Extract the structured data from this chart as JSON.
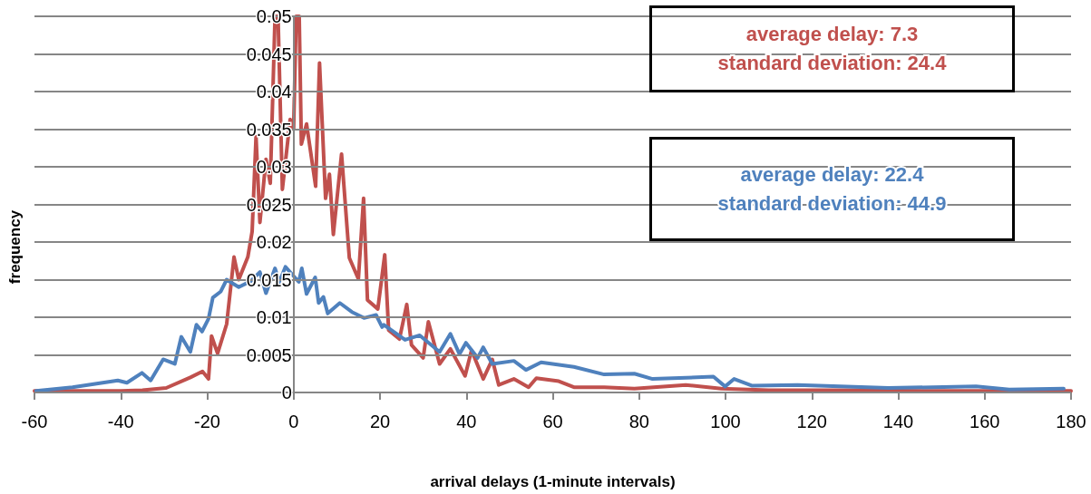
{
  "chart_data": {
    "type": "line",
    "xlabel": "arrival delays (1-minute intervals)",
    "ylabel": "frequency",
    "annotations": [
      "average delay: 7.3\nstandard deviation: 24.4",
      "average delay: 22.4\nstandard deviation: 44.9"
    ],
    "xlim": [
      -60,
      180
    ],
    "xticks": [
      -60,
      -40,
      -20,
      0,
      20,
      40,
      60,
      80,
      100,
      120,
      140,
      160,
      180
    ],
    "ylim": [
      0,
      0.05
    ],
    "yticks": [
      0,
      0.005,
      0.01,
      0.015,
      0.02,
      0.025,
      0.03,
      0.035,
      0.04,
      0.045,
      0.05
    ],
    "grid": "y",
    "marker": "none",
    "line_style": "solid",
    "series": [
      {
        "color": "#c0504d",
        "x": [
          -60,
          -50,
          -40,
          -35,
          -29.5,
          -23.9,
          -21.1,
          -19.7,
          -19,
          -17.6,
          -15.5,
          -13.8,
          -12.7,
          -10.6,
          -9.6,
          -8.7,
          -7.8,
          -6.4,
          -5.4,
          -4.3,
          -3.6,
          -2.6,
          -0.8,
          0,
          0.6,
          1.3,
          1.8,
          3,
          5.1,
          6,
          7.4,
          8.3,
          9.2,
          11.1,
          12.9,
          15,
          16.2,
          17.1,
          19.5,
          21.1,
          22,
          24.5,
          26.2,
          27.3,
          30,
          31.2,
          33.8,
          36.3,
          39.7,
          41.2,
          43.9,
          46,
          47.5,
          51,
          54.4,
          56.2,
          61.4,
          64.9,
          71.9,
          78.9,
          90.8,
          99,
          110,
          130,
          150,
          170,
          180
        ],
        "values": [
          0.0002,
          0.0002,
          0.0002,
          0.0003,
          0.0006,
          0.002,
          0.0028,
          0.0018,
          0.0075,
          0.0052,
          0.0091,
          0.018,
          0.015,
          0.018,
          0.0214,
          0.034,
          0.0226,
          0.031,
          0.0278,
          0.05,
          0.05,
          0.027,
          0.0363,
          0.035,
          0.05,
          0.05,
          0.033,
          0.0357,
          0.0274,
          0.0438,
          0.0258,
          0.029,
          0.021,
          0.0317,
          0.0179,
          0.0151,
          0.0258,
          0.0123,
          0.0111,
          0.0183,
          0.0083,
          0.0071,
          0.0117,
          0.0063,
          0.0046,
          0.0094,
          0.0038,
          0.0058,
          0.0022,
          0.0056,
          0.0018,
          0.0044,
          0.001,
          0.0018,
          0.0007,
          0.0019,
          0.0015,
          0.0007,
          0.0007,
          0.0005,
          0.001,
          0.0005,
          0.0003,
          0.0003,
          0.0002,
          0.0002,
          0.0002
        ]
      },
      {
        "color": "#4f81bd",
        "x": [
          -59.6,
          -51.2,
          -40.7,
          -38.6,
          -35.1,
          -33.1,
          -30.2,
          -27.5,
          -26,
          -23.9,
          -22.5,
          -21.2,
          -19.7,
          -18.7,
          -16.9,
          -15.5,
          -12.7,
          -9.9,
          -7.8,
          -6.4,
          -4.3,
          -3.3,
          -1.9,
          1.2,
          1.9,
          3,
          5,
          5.8,
          6.9,
          7.9,
          10.7,
          13.5,
          16.3,
          19.1,
          20.5,
          20.9,
          25.8,
          29.2,
          33.8,
          36.3,
          38.4,
          39.9,
          42.6,
          43.9,
          46,
          51,
          53.8,
          57.3,
          64.9,
          71.9,
          78.9,
          83.1,
          97.2,
          99.9,
          102,
          106.2,
          116.7,
          126.5,
          137.7,
          158,
          165.7,
          178.3
        ],
        "values": [
          0.0002,
          0.0007,
          0.0016,
          0.0013,
          0.0026,
          0.0016,
          0.0044,
          0.0038,
          0.0074,
          0.0054,
          0.009,
          0.0081,
          0.0098,
          0.0126,
          0.0134,
          0.015,
          0.014,
          0.0148,
          0.016,
          0.0132,
          0.0165,
          0.0147,
          0.0167,
          0.0147,
          0.0165,
          0.0131,
          0.0153,
          0.0119,
          0.0127,
          0.0105,
          0.0119,
          0.0107,
          0.0099,
          0.0103,
          0.0087,
          0.009,
          0.007,
          0.0076,
          0.0054,
          0.0078,
          0.0051,
          0.0066,
          0.0046,
          0.006,
          0.0038,
          0.0042,
          0.003,
          0.004,
          0.0034,
          0.0024,
          0.0025,
          0.0018,
          0.0021,
          0.0008,
          0.0018,
          0.0009,
          0.001,
          0.0008,
          0.0006,
          0.0008,
          0.0004,
          0.0005
        ]
      }
    ]
  }
}
